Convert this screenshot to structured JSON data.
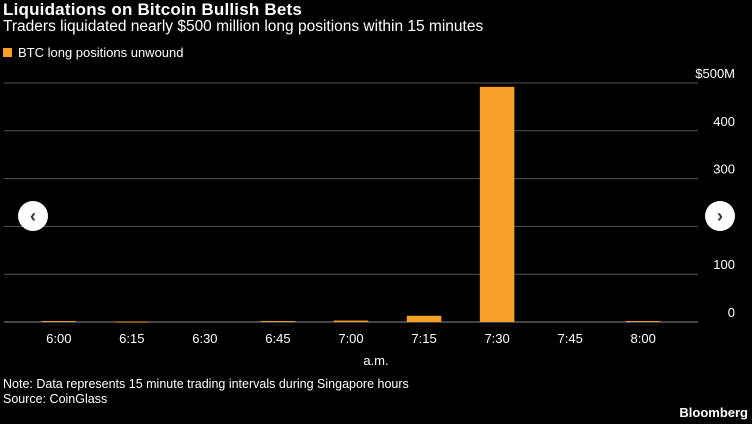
{
  "header": {
    "title": "Liquidations on Bitcoin Bullish Bets",
    "subtitle": "Traders liquidated nearly $500 million long positions within 15 minutes"
  },
  "legend": {
    "label": "BTC long positions unwound",
    "color": "#f7a128"
  },
  "nav": {
    "prev_glyph": "‹",
    "next_glyph": "›"
  },
  "footer": {
    "note": "Note: Data represents 15 minute trading intervals during Singapore hours",
    "source": "Source: CoinGlass",
    "brand": "Bloomberg"
  },
  "chart_data": {
    "type": "bar",
    "xlabel": "a.m.",
    "ylabel": "",
    "ylim": [
      0,
      500
    ],
    "yticks": [
      {
        "value": 0,
        "label": "0"
      },
      {
        "value": 100,
        "label": "100"
      },
      {
        "value": 200,
        "label": ""
      },
      {
        "value": 300,
        "label": "300"
      },
      {
        "value": 400,
        "label": "400"
      },
      {
        "value": 500,
        "label": "$500M"
      }
    ],
    "categories": [
      "",
      "6:00",
      "",
      "6:15",
      "",
      "6:30",
      "",
      "6:45",
      "",
      "7:00",
      "",
      "7:15",
      "",
      "7:30",
      "",
      "7:45",
      "",
      "8:00",
      ""
    ],
    "series": [
      {
        "name": "BTC long positions unwound",
        "color": "#f7a128",
        "values": [
          0,
          2,
          0,
          1,
          0,
          0,
          0,
          2,
          0,
          3,
          0,
          13,
          0,
          492,
          0,
          0,
          0,
          2,
          0
        ]
      }
    ],
    "grid": true,
    "colors": {
      "grid": "#555555",
      "axis": "#888888",
      "tick_text": "#ffffff"
    }
  }
}
